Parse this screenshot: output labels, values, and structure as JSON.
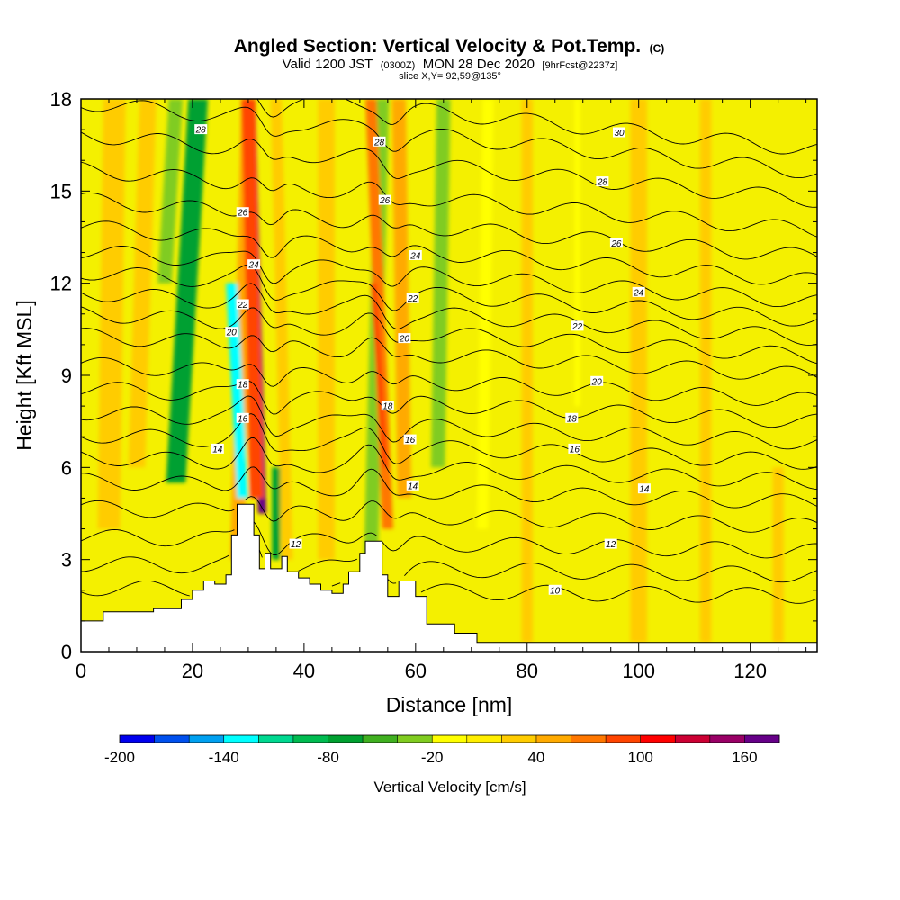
{
  "chart_data": {
    "type": "heatmap",
    "title": "Angled Section: Vertical Velocity & Pot.Temp.",
    "title_suffix": "(C)",
    "subtitle": {
      "part1": "Valid 1200 JST",
      "part2": "(0300Z)",
      "part3": "MON 28 Dec 2020",
      "part4": "[9hrFcst@2237z]"
    },
    "slice_info": "slice X,Y= 92,59@135°",
    "xlabel": "Distance [nm]",
    "ylabel": "Height [Kft MSL]",
    "xlim": [
      0,
      132
    ],
    "ylim": [
      0,
      18
    ],
    "x_ticks": [
      0,
      20,
      40,
      60,
      80,
      100,
      120
    ],
    "y_ticks": [
      0,
      3,
      6,
      9,
      12,
      15,
      18
    ],
    "colorbar": {
      "label": "Vertical Velocity [cm/s]",
      "ticks": [
        -200,
        -140,
        -80,
        -20,
        40,
        100,
        160
      ],
      "boundaries": [
        -200,
        -180,
        -160,
        -140,
        -120,
        -100,
        -80,
        -60,
        -40,
        -20,
        0,
        20,
        40,
        60,
        80,
        100,
        120,
        140,
        160,
        180
      ],
      "colors": [
        "#0000ee",
        "#0050ee",
        "#00a0f0",
        "#00ffff",
        "#00d890",
        "#00bb50",
        "#00a030",
        "#40b020",
        "#80cc20",
        "#ffff00",
        "#ffee00",
        "#ffcc00",
        "#ffaa00",
        "#ff7700",
        "#ff4400",
        "#ff0000",
        "#cc0033",
        "#990066",
        "#660088"
      ]
    },
    "shading_background": "#f4f000",
    "vertical_velocity_features": [
      {
        "x": 17,
        "top": 18,
        "bottom": 5.5,
        "tilt": 4,
        "width": 3.5,
        "value": -70
      },
      {
        "x": 15,
        "top": 18,
        "bottom": 12,
        "tilt": 2,
        "width": 2.5,
        "value": -40
      },
      {
        "x": 10,
        "top": 18,
        "bottom": 6,
        "tilt": 2,
        "width": 3,
        "value": 30
      },
      {
        "x": 5,
        "top": 18,
        "bottom": 4,
        "tilt": 1,
        "width": 4,
        "value": 20
      },
      {
        "x": 28,
        "top": 18,
        "bottom": 3,
        "tilt": 2,
        "width": 2.5,
        "value": 40
      },
      {
        "x": 32.5,
        "top": 18,
        "bottom": 4.5,
        "tilt": -2,
        "width": 1.5,
        "value": 170
      },
      {
        "x": 31.5,
        "top": 18,
        "bottom": 5,
        "tilt": -1.5,
        "width": 2.5,
        "value": 90
      },
      {
        "x": 29.5,
        "top": 12,
        "bottom": 5,
        "tilt": -2.5,
        "width": 1.0,
        "value": -190
      },
      {
        "x": 29,
        "top": 12,
        "bottom": 5,
        "tilt": -2,
        "width": 2.0,
        "value": -130
      },
      {
        "x": 37,
        "top": 18,
        "bottom": 3,
        "tilt": -2,
        "width": 2,
        "value": 30
      },
      {
        "x": 35,
        "top": 6,
        "bottom": 3,
        "tilt": 0,
        "width": 1.5,
        "value": -80
      },
      {
        "x": 52,
        "top": 18,
        "bottom": 3,
        "tilt": 2,
        "width": 1.5,
        "value": -110
      },
      {
        "x": 52,
        "top": 18,
        "bottom": 3,
        "tilt": 2,
        "width": 2.5,
        "value": -40
      },
      {
        "x": 55,
        "top": 18,
        "bottom": 4,
        "tilt": -3,
        "width": 2,
        "value": 60
      },
      {
        "x": 54.5,
        "top": 12,
        "bottom": 6,
        "tilt": -2,
        "width": 1,
        "value": 80
      },
      {
        "x": 58,
        "top": 18,
        "bottom": 5,
        "tilt": -1,
        "width": 2.5,
        "value": 40
      },
      {
        "x": 64,
        "top": 18,
        "bottom": 6,
        "tilt": 1,
        "width": 2.5,
        "value": -30
      },
      {
        "x": 72,
        "top": 18,
        "bottom": 4,
        "tilt": 1,
        "width": 2,
        "value": -20
      },
      {
        "x": 89,
        "top": 18,
        "bottom": 8,
        "tilt": 0,
        "width": 1,
        "value": -20
      },
      {
        "x": 44,
        "top": 18,
        "bottom": 3,
        "tilt": 0,
        "width": 3,
        "value": 30
      },
      {
        "x": 80,
        "top": 18,
        "bottom": 0.3,
        "tilt": 0,
        "width": 2,
        "value": 20
      },
      {
        "x": 112,
        "top": 18,
        "bottom": 0.3,
        "tilt": 0,
        "width": 2,
        "value": 20
      },
      {
        "x": 125,
        "top": 6,
        "bottom": 0.3,
        "tilt": 0,
        "width": 2,
        "value": 20
      },
      {
        "x": 100,
        "top": 18,
        "bottom": 0.3,
        "tilt": 0,
        "width": 3,
        "value": 30
      }
    ],
    "terrain": [
      [
        0,
        1.0
      ],
      [
        4,
        1.0
      ],
      [
        4,
        1.3
      ],
      [
        13,
        1.3
      ],
      [
        13,
        1.4
      ],
      [
        18,
        1.4
      ],
      [
        18,
        1.7
      ],
      [
        20,
        1.7
      ],
      [
        20,
        2.0
      ],
      [
        22,
        2.0
      ],
      [
        22,
        2.3
      ],
      [
        24,
        2.3
      ],
      [
        24,
        2.2
      ],
      [
        26,
        2.2
      ],
      [
        26,
        2.5
      ],
      [
        27,
        2.5
      ],
      [
        27,
        3.8
      ],
      [
        28,
        3.8
      ],
      [
        28,
        4.8
      ],
      [
        31,
        4.8
      ],
      [
        31,
        3.8
      ],
      [
        32,
        3.8
      ],
      [
        32,
        2.7
      ],
      [
        33,
        2.7
      ],
      [
        33,
        3.2
      ],
      [
        34,
        3.2
      ],
      [
        34,
        2.7
      ],
      [
        36,
        2.7
      ],
      [
        36,
        3.1
      ],
      [
        37,
        3.1
      ],
      [
        37,
        2.6
      ],
      [
        39,
        2.6
      ],
      [
        39,
        2.4
      ],
      [
        41,
        2.4
      ],
      [
        41,
        2.2
      ],
      [
        43,
        2.2
      ],
      [
        43,
        2.0
      ],
      [
        45,
        2.0
      ],
      [
        45,
        1.9
      ],
      [
        47,
        1.9
      ],
      [
        47,
        2.2
      ],
      [
        48,
        2.2
      ],
      [
        48,
        2.6
      ],
      [
        50,
        2.6
      ],
      [
        50,
        3.2
      ],
      [
        51,
        3.2
      ],
      [
        51,
        3.6
      ],
      [
        54,
        3.6
      ],
      [
        54,
        2.5
      ],
      [
        55,
        2.5
      ],
      [
        55,
        1.8
      ],
      [
        57,
        1.8
      ],
      [
        57,
        2.3
      ],
      [
        60,
        2.3
      ],
      [
        60,
        1.8
      ],
      [
        62,
        1.8
      ],
      [
        62,
        0.9
      ],
      [
        67,
        0.9
      ],
      [
        67,
        0.6
      ],
      [
        71,
        0.6
      ],
      [
        71,
        0.3
      ],
      [
        132,
        0.3
      ]
    ],
    "pot_temp_contours": [
      {
        "level": 10,
        "base": 2.0
      },
      {
        "level": 11,
        "base": 2.75
      },
      {
        "level": 12,
        "base": 3.6
      },
      {
        "level": 13,
        "base": 4.5
      },
      {
        "level": 14,
        "base": 5.35
      },
      {
        "level": 15,
        "base": 6.1
      },
      {
        "level": 16,
        "base": 6.8
      },
      {
        "level": 17,
        "base": 7.5
      },
      {
        "level": 18,
        "base": 8.25
      },
      {
        "level": 19,
        "base": 9.0
      },
      {
        "level": 20,
        "base": 9.9
      },
      {
        "level": 21,
        "base": 10.6
      },
      {
        "level": 22,
        "base": 11.25
      },
      {
        "level": 23,
        "base": 11.9
      },
      {
        "level": 24,
        "base": 12.55
      },
      {
        "level": 25,
        "base": 13.3
      },
      {
        "level": 26,
        "base": 14.15
      },
      {
        "level": 27,
        "base": 15.1
      },
      {
        "level": 28,
        "base": 16.2
      },
      {
        "level": 29,
        "base": 17.2
      },
      {
        "level": 30,
        "base": 18.0
      }
    ],
    "contour_labels": [
      {
        "text": "28",
        "x": 21.5,
        "y": 17.0
      },
      {
        "text": "30",
        "x": 96.5,
        "y": 16.9
      },
      {
        "text": "28",
        "x": 53.5,
        "y": 16.6
      },
      {
        "text": "28",
        "x": 93.5,
        "y": 15.3
      },
      {
        "text": "26",
        "x": 54.5,
        "y": 14.7
      },
      {
        "text": "26",
        "x": 29,
        "y": 14.3
      },
      {
        "text": "26",
        "x": 96,
        "y": 13.3
      },
      {
        "text": "24",
        "x": 60,
        "y": 12.9
      },
      {
        "text": "24",
        "x": 31,
        "y": 12.6
      },
      {
        "text": "24",
        "x": 100,
        "y": 11.7
      },
      {
        "text": "22",
        "x": 59.5,
        "y": 11.5
      },
      {
        "text": "22",
        "x": 29,
        "y": 11.3
      },
      {
        "text": "22",
        "x": 89,
        "y": 10.6
      },
      {
        "text": "20",
        "x": 27,
        "y": 10.4
      },
      {
        "text": "20",
        "x": 58,
        "y": 10.2
      },
      {
        "text": "20",
        "x": 92.5,
        "y": 8.8
      },
      {
        "text": "18",
        "x": 29,
        "y": 8.7
      },
      {
        "text": "18",
        "x": 55,
        "y": 8.0
      },
      {
        "text": "18",
        "x": 88,
        "y": 7.6
      },
      {
        "text": "16",
        "x": 29,
        "y": 7.6
      },
      {
        "text": "16",
        "x": 59,
        "y": 6.9
      },
      {
        "text": "16",
        "x": 88.5,
        "y": 6.6
      },
      {
        "text": "14",
        "x": 24.5,
        "y": 6.6
      },
      {
        "text": "14",
        "x": 59.5,
        "y": 5.4
      },
      {
        "text": "14",
        "x": 101,
        "y": 5.3
      },
      {
        "text": "12",
        "x": 38.5,
        "y": 3.5
      },
      {
        "text": "12",
        "x": 95,
        "y": 3.5
      },
      {
        "text": "10",
        "x": 85,
        "y": 2.0
      }
    ]
  }
}
